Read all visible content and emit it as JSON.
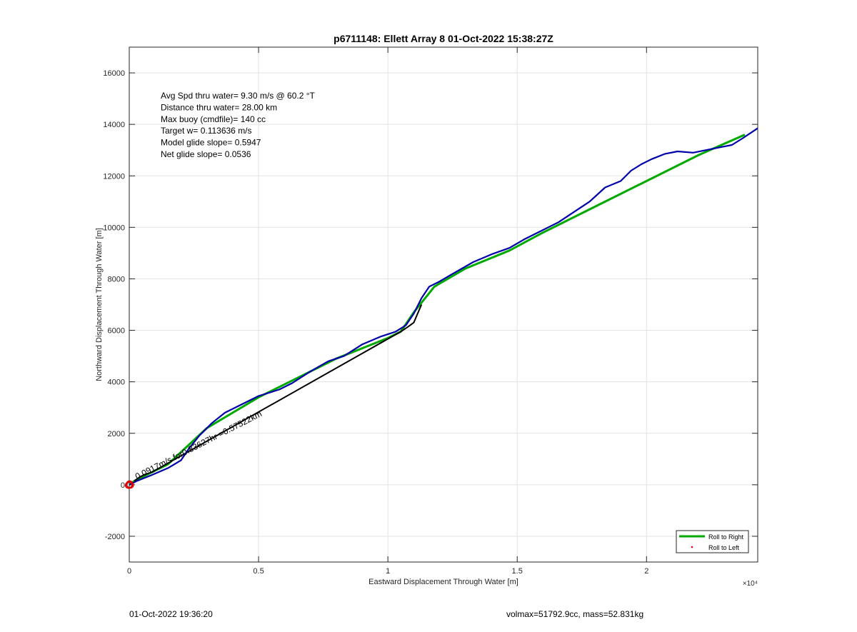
{
  "chart_data": {
    "type": "line",
    "title": "p6711148: Ellett Array 8 01-Oct-2022 15:38:27Z",
    "xlabel": "Eastward Displacement Through Water [m]",
    "ylabel": "Northward Displacement Through Water [m]",
    "xlim": [
      0,
      24300
    ],
    "ylim": [
      -3000,
      17000
    ],
    "x_ticks": [
      0,
      5000,
      10000,
      15000,
      20000
    ],
    "x_tick_labels": [
      "0",
      "0.5",
      "1",
      "1.5",
      "2"
    ],
    "x_exponent": "×10⁴",
    "y_ticks": [
      -2000,
      0,
      2000,
      4000,
      6000,
      8000,
      10000,
      12000,
      14000,
      16000
    ],
    "y_tick_labels": [
      "-2000",
      "0",
      "2000",
      "4000",
      "6000",
      "8000",
      "10000",
      "12000",
      "14000",
      "16000"
    ],
    "grid": true,
    "legend_position": "bottom-right",
    "annotations": [
      "Avg Spd thru water=  9.30 m/s @  60.2 °T",
      "Distance thru water= 28.00 km",
      "Max buoy (cmdfile)= 140 cc",
      "Target w= 0.113636 m/s",
      "Model glide slope= 0.5947",
      "Net glide slope= 0.0536"
    ],
    "path_label": "0.0917m/s for0.83627hr =0.57522km",
    "series": [
      {
        "name": "Roll to Right",
        "color": "#00aa00",
        "x": [
          0,
          200,
          1500,
          3000,
          5000,
          6000,
          8000,
          10000,
          10500,
          11000,
          11800,
          13000,
          14700,
          16000,
          18000,
          20000,
          22000,
          23800
        ],
        "y": [
          0,
          150,
          800,
          2200,
          3400,
          3900,
          4900,
          5700,
          5950,
          6700,
          7700,
          8400,
          9100,
          9800,
          10800,
          11800,
          12800,
          13600
        ]
      },
      {
        "name": "Roll to Left",
        "color": "#dd0000",
        "x": [
          0,
          20,
          40,
          10,
          -30
        ],
        "y": [
          0,
          20,
          -10,
          30,
          -20
        ]
      },
      {
        "name": "",
        "color": "#000000",
        "x": [
          200,
          400,
          600,
          900,
          10500,
          10800,
          11000,
          11300
        ],
        "y": [
          150,
          300,
          400,
          500,
          5950,
          6150,
          6300,
          7000
        ]
      },
      {
        "name": "",
        "color": "#0000aa",
        "x": [
          0,
          300,
          800,
          1500,
          2000,
          2300,
          2700,
          3200,
          3700,
          4300,
          5000,
          5800,
          6300,
          7000,
          7700,
          8300,
          9000,
          9700,
          10300,
          10700,
          11000,
          11300,
          11600,
          12000,
          12600,
          13300,
          14000,
          14700,
          15300,
          16000,
          16600,
          17200,
          17800,
          18400,
          19000,
          19400,
          19800,
          20200,
          20700,
          21200,
          21800,
          22300,
          22800,
          23300,
          23700,
          24300
        ],
        "y": [
          0,
          150,
          350,
          650,
          950,
          1400,
          1900,
          2400,
          2800,
          3100,
          3450,
          3700,
          3950,
          4400,
          4800,
          5000,
          5450,
          5750,
          5950,
          6200,
          6650,
          7250,
          7700,
          7900,
          8250,
          8650,
          8950,
          9200,
          9550,
          9900,
          10200,
          10600,
          11000,
          11550,
          11800,
          12200,
          12450,
          12650,
          12850,
          12950,
          12900,
          13000,
          13100,
          13200,
          13450,
          13850
        ]
      }
    ]
  },
  "footer": {
    "left": "01-Oct-2022 19:36:20",
    "right": "volmax=51792.9cc, mass=52.831kg"
  }
}
